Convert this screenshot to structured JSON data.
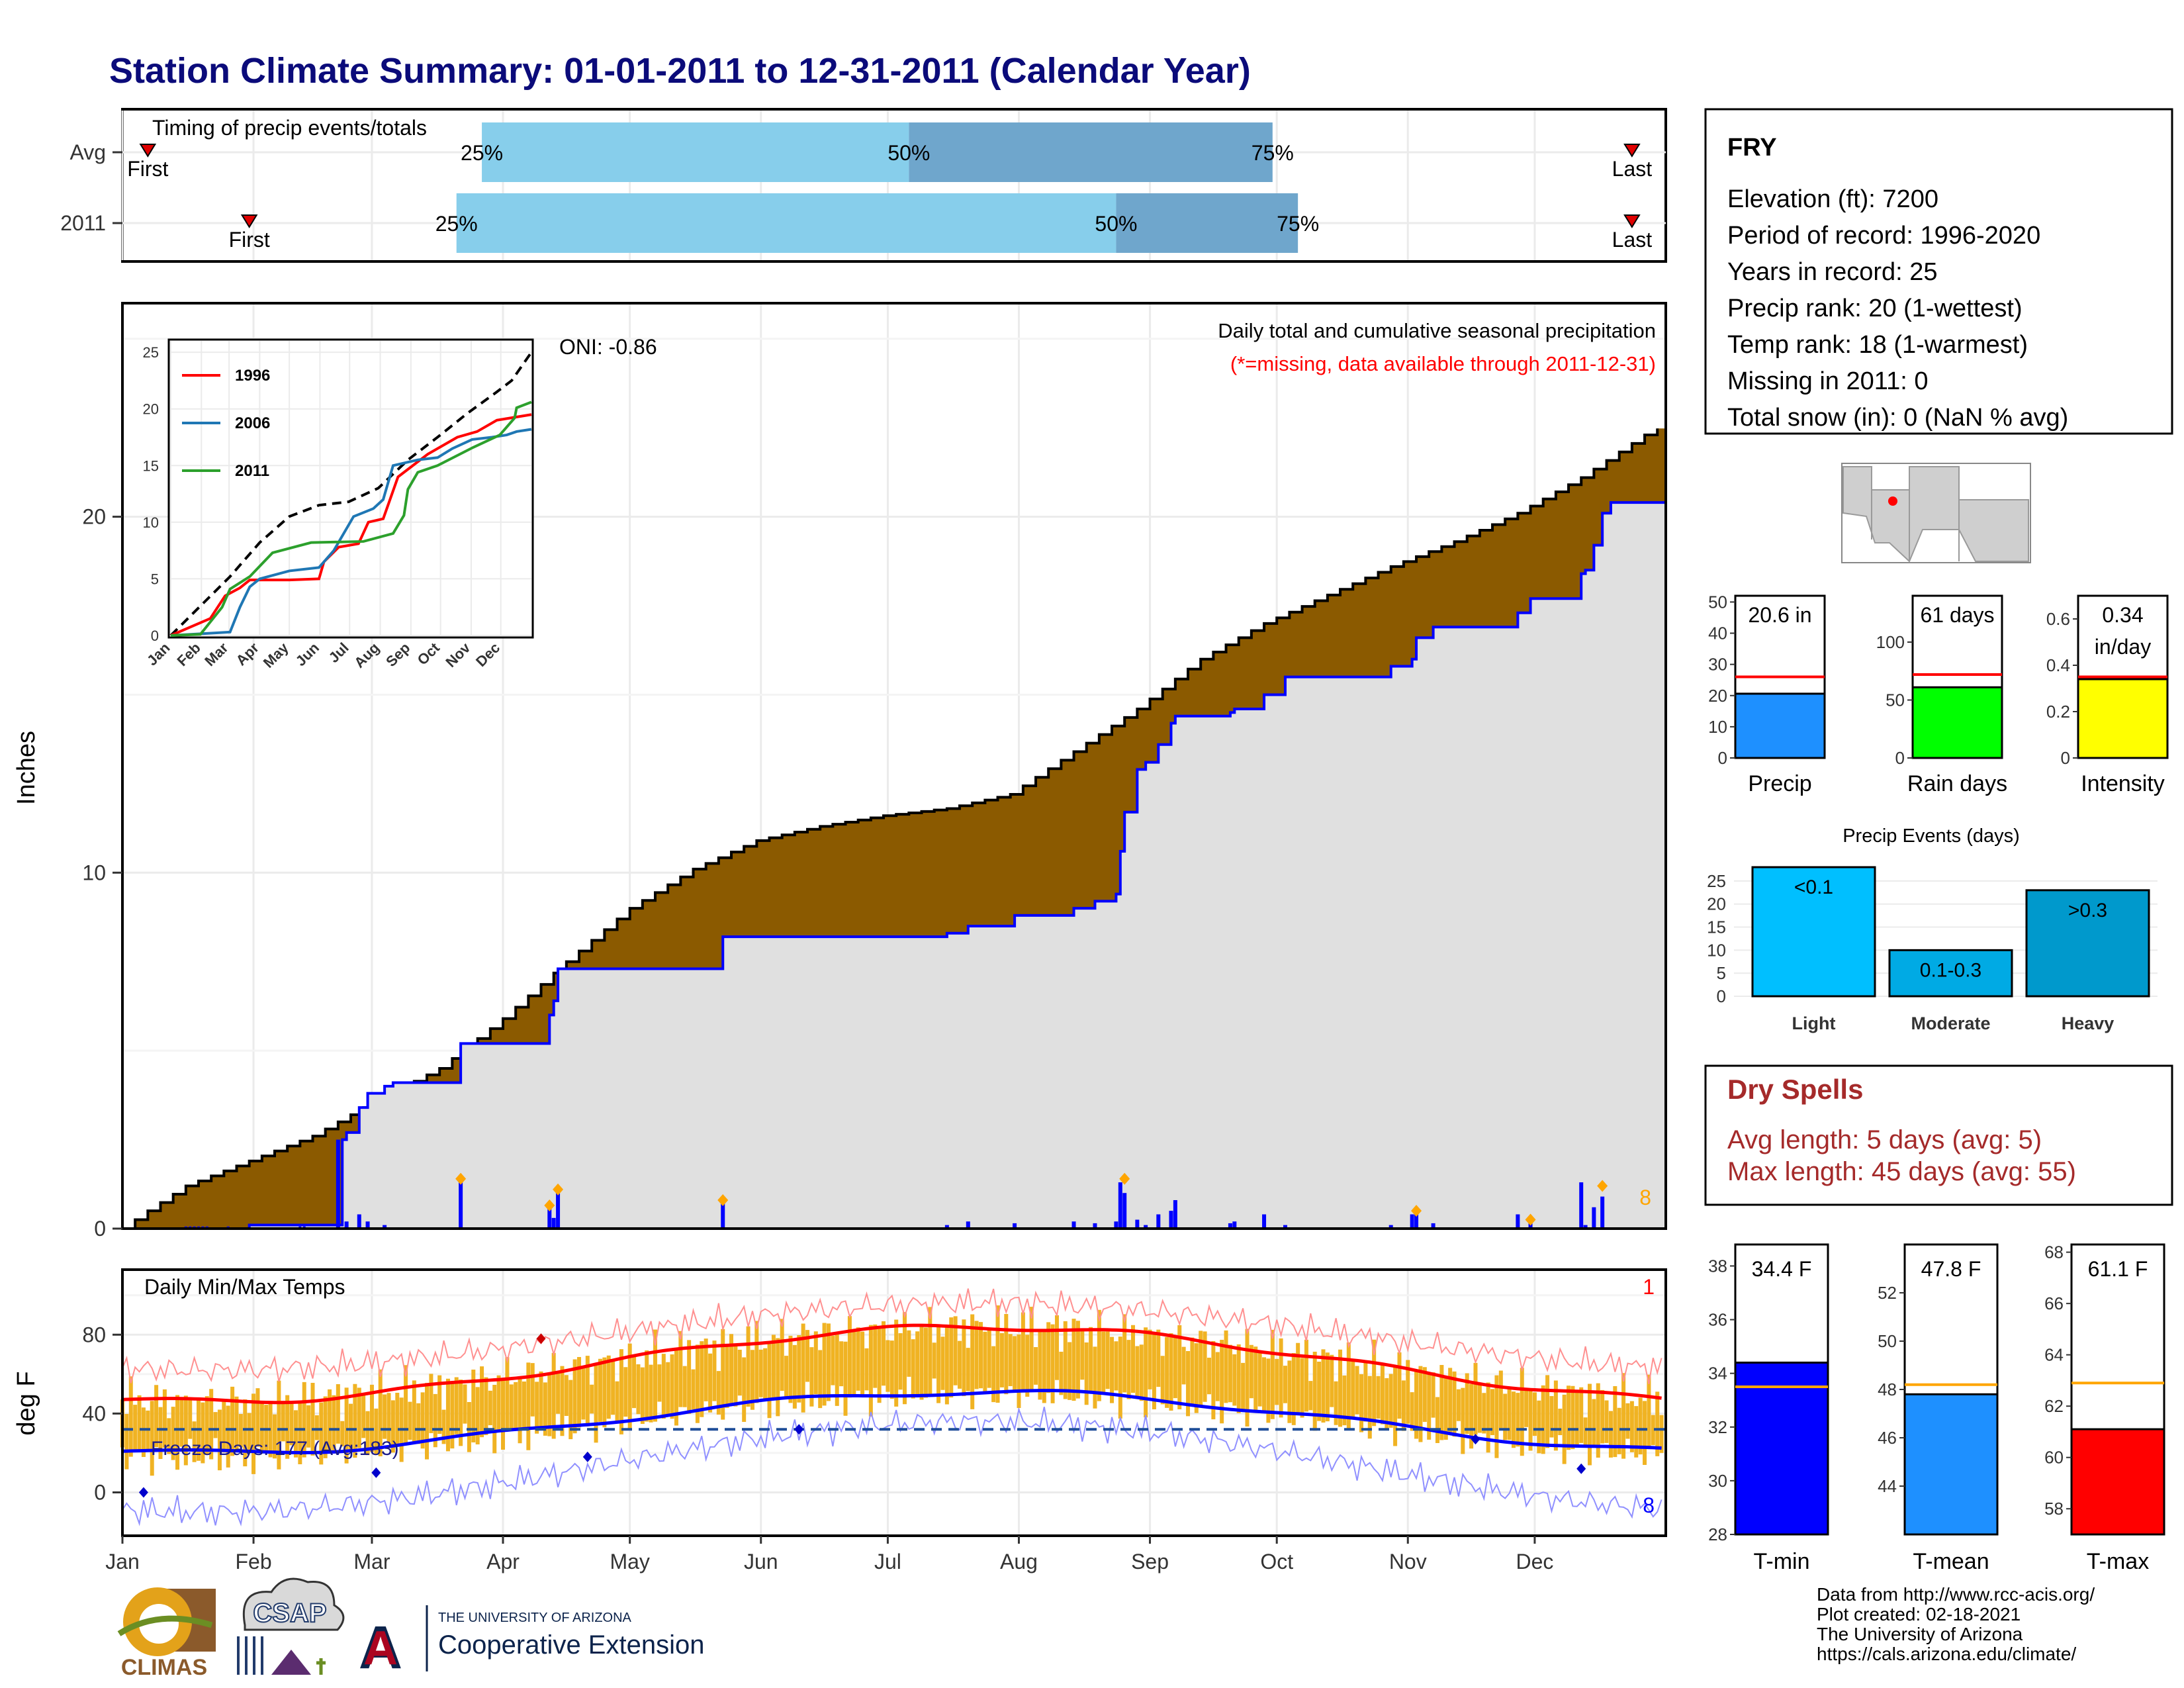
{
  "title": "Station Climate Summary: 01-01-2011 to 12-31-2011 (Calendar Year)",
  "colors": {
    "title": "#0b0b7a",
    "precip_fill": "#8b5a00",
    "precip_line": "#0000ff",
    "cum_gray": "#e0e0e0",
    "timing_light": "#87ceeb",
    "timing_dark": "#6fa6cc",
    "tmin": "#0000ff",
    "tmean": "#1e90ff",
    "tmax": "#ff0000",
    "range": "#f0b323",
    "dry_spells": "#a52a2a"
  },
  "months": [
    "Jan",
    "Feb",
    "Mar",
    "Apr",
    "May",
    "Jun",
    "Jul",
    "Aug",
    "Sep",
    "Oct",
    "Nov",
    "Dec"
  ],
  "timing": {
    "title": "Timing of precip events/totals",
    "rows": [
      {
        "label": "Avg",
        "first_day": 6,
        "last_day": 357,
        "p25": 85,
        "p50": 186,
        "p75": 272,
        "first_label": "First",
        "last_label": "Last",
        "p25_label": "25%",
        "p50_label": "50%",
        "p75_label": "75%"
      },
      {
        "label": "2011",
        "first_day": 30,
        "last_day": 357,
        "p25": 79,
        "p50": 235,
        "p75": 278,
        "first_label": "First",
        "last_label": "Last",
        "p25_label": "25%",
        "p50_label": "50%",
        "p75_label": "75%"
      }
    ]
  },
  "precip_panel": {
    "ylabel": "Inches",
    "yticks": [
      0,
      10,
      20
    ],
    "ymax": 26,
    "oni": "ONI: -0.86",
    "header1": "Daily total and cumulative seasonal precipitation",
    "header2": "(*=missing, data available through 2011-12-31)",
    "count_label": "8",
    "avg_cumulative": [
      [
        0,
        0
      ],
      [
        6,
        0.5
      ],
      [
        15,
        1.2
      ],
      [
        30,
        1.9
      ],
      [
        45,
        2.6
      ],
      [
        60,
        3.6
      ],
      [
        75,
        4.5
      ],
      [
        90,
        5.9
      ],
      [
        105,
        7.5
      ],
      [
        120,
        9.0
      ],
      [
        135,
        10.1
      ],
      [
        150,
        10.9
      ],
      [
        165,
        11.3
      ],
      [
        180,
        11.6
      ],
      [
        195,
        11.8
      ],
      [
        210,
        12.2
      ],
      [
        225,
        13.4
      ],
      [
        240,
        14.6
      ],
      [
        255,
        16.0
      ],
      [
        270,
        17.0
      ],
      [
        285,
        17.8
      ],
      [
        300,
        18.6
      ],
      [
        315,
        19.3
      ],
      [
        330,
        20.1
      ],
      [
        345,
        21.1
      ],
      [
        360,
        22.3
      ],
      [
        375,
        23.2
      ],
      [
        390,
        24.2
      ],
      [
        405,
        25.4
      ]
    ],
    "obs_cumulative": [
      [
        0,
        0
      ],
      [
        30,
        0.1
      ],
      [
        51,
        0.1
      ],
      [
        52,
        2.5
      ],
      [
        53,
        2.7
      ],
      [
        56,
        3.4
      ],
      [
        58,
        3.8
      ],
      [
        62,
        4.0
      ],
      [
        64,
        4.1
      ],
      [
        79,
        4.1
      ],
      [
        80,
        5.2
      ],
      [
        100,
        5.2
      ],
      [
        101,
        6.0
      ],
      [
        102,
        6.4
      ],
      [
        103,
        7.3
      ],
      [
        141,
        7.3
      ],
      [
        142,
        8.2
      ],
      [
        170,
        8.2
      ],
      [
        180,
        8.2
      ],
      [
        195,
        8.3
      ],
      [
        200,
        8.5
      ],
      [
        210,
        8.5
      ],
      [
        211,
        8.8
      ],
      [
        225,
        9.0
      ],
      [
        230,
        9.2
      ],
      [
        235,
        9.4
      ],
      [
        236,
        10.6
      ],
      [
        237,
        11.7
      ],
      [
        240,
        12.9
      ],
      [
        242,
        13.1
      ],
      [
        245,
        13.6
      ],
      [
        248,
        14.2
      ],
      [
        249,
        14.4
      ],
      [
        262,
        14.5
      ],
      [
        263,
        14.6
      ],
      [
        270,
        15.0
      ],
      [
        275,
        15.5
      ],
      [
        300,
        15.8
      ],
      [
        305,
        16.0
      ],
      [
        306,
        16.6
      ],
      [
        310,
        16.9
      ],
      [
        330,
        17.3
      ],
      [
        333,
        17.7
      ],
      [
        345,
        18.4
      ],
      [
        346,
        18.5
      ],
      [
        348,
        19.2
      ],
      [
        350,
        20.1
      ],
      [
        352,
        20.4
      ],
      [
        365,
        20.6
      ]
    ],
    "daily": [
      [
        51,
        2.5
      ],
      [
        53,
        0.2
      ],
      [
        56,
        0.4
      ],
      [
        58,
        0.2
      ],
      [
        62,
        0.1
      ],
      [
        80,
        1.3
      ],
      [
        101,
        0.6
      ],
      [
        102,
        0.3
      ],
      [
        103,
        1.0
      ],
      [
        142,
        0.7
      ],
      [
        195,
        0.1
      ],
      [
        200,
        0.2
      ],
      [
        211,
        0.15
      ],
      [
        225,
        0.2
      ],
      [
        230,
        0.15
      ],
      [
        235,
        0.2
      ],
      [
        236,
        1.3
      ],
      [
        237,
        1.0
      ],
      [
        240,
        0.25
      ],
      [
        242,
        0.1
      ],
      [
        245,
        0.4
      ],
      [
        248,
        0.5
      ],
      [
        249,
        0.8
      ],
      [
        262,
        0.15
      ],
      [
        263,
        0.2
      ],
      [
        270,
        0.4
      ],
      [
        275,
        0.1
      ],
      [
        300,
        0.1
      ],
      [
        305,
        0.4
      ],
      [
        306,
        0.6
      ],
      [
        310,
        0.15
      ],
      [
        330,
        0.4
      ],
      [
        333,
        0.3
      ],
      [
        345,
        1.3
      ],
      [
        346,
        0.1
      ],
      [
        348,
        0.6
      ],
      [
        350,
        0.9
      ]
    ],
    "markers": [
      [
        80,
        1.4
      ],
      [
        101,
        0.65
      ],
      [
        103,
        1.1
      ],
      [
        142,
        0.8
      ],
      [
        237,
        1.4
      ],
      [
        306,
        0.5
      ],
      [
        333,
        0.25
      ],
      [
        350,
        1.2
      ]
    ]
  },
  "inset": {
    "yticks": [
      0,
      5,
      10,
      15,
      20,
      25
    ],
    "ymax": 26,
    "series": [
      {
        "name": "1996",
        "color": "#ff0000",
        "points": [
          [
            0,
            0
          ],
          [
            40,
            1.5
          ],
          [
            55,
            3.5
          ],
          [
            70,
            4.2
          ],
          [
            80,
            4.9
          ],
          [
            120,
            4.9
          ],
          [
            150,
            5.0
          ],
          [
            155,
            6.5
          ],
          [
            170,
            7.8
          ],
          [
            190,
            8.1
          ],
          [
            200,
            10.0
          ],
          [
            215,
            10.3
          ],
          [
            230,
            14.0
          ],
          [
            245,
            15.0
          ],
          [
            260,
            16.0
          ],
          [
            290,
            17.5
          ],
          [
            310,
            18.0
          ],
          [
            330,
            19.0
          ],
          [
            365,
            19.5
          ]
        ]
      },
      {
        "name": "2006",
        "color": "#1f77b4",
        "points": [
          [
            0,
            0
          ],
          [
            60,
            0.3
          ],
          [
            70,
            2.5
          ],
          [
            80,
            4.3
          ],
          [
            90,
            5.0
          ],
          [
            120,
            5.7
          ],
          [
            150,
            6.0
          ],
          [
            165,
            7.5
          ],
          [
            185,
            10.5
          ],
          [
            205,
            11.2
          ],
          [
            215,
            12.0
          ],
          [
            225,
            15.0
          ],
          [
            250,
            15.5
          ],
          [
            270,
            15.7
          ],
          [
            285,
            16.5
          ],
          [
            305,
            17.3
          ],
          [
            325,
            17.5
          ],
          [
            340,
            17.7
          ],
          [
            350,
            18.0
          ],
          [
            365,
            18.2
          ]
        ]
      },
      {
        "name": "2011",
        "color": "#2ca02c",
        "points": [
          [
            0,
            0
          ],
          [
            30,
            0.1
          ],
          [
            52,
            2.5
          ],
          [
            60,
            4.1
          ],
          [
            80,
            5.2
          ],
          [
            103,
            7.3
          ],
          [
            142,
            8.2
          ],
          [
            195,
            8.3
          ],
          [
            225,
            9.0
          ],
          [
            236,
            10.6
          ],
          [
            240,
            12.9
          ],
          [
            250,
            14.4
          ],
          [
            270,
            15.0
          ],
          [
            306,
            16.6
          ],
          [
            333,
            17.7
          ],
          [
            348,
            19.2
          ],
          [
            350,
            20.1
          ],
          [
            365,
            20.6
          ]
        ]
      }
    ],
    "avg_line": [
      [
        0,
        0
      ],
      [
        30,
        2.6
      ],
      [
        60,
        5.2
      ],
      [
        90,
        8.2
      ],
      [
        120,
        10.5
      ],
      [
        150,
        11.5
      ],
      [
        180,
        11.8
      ],
      [
        210,
        13.0
      ],
      [
        240,
        15.5
      ],
      [
        270,
        17.5
      ],
      [
        300,
        19.6
      ],
      [
        330,
        21.5
      ],
      [
        345,
        22.5
      ],
      [
        365,
        25.0
      ]
    ]
  },
  "temp_panel": {
    "title": "Daily Min/Max Temps",
    "ylabel": "deg F",
    "yticks": [
      0,
      40,
      80
    ],
    "ymin": -22,
    "ymax": 113,
    "freeze_label": "Freeze Days: 177 (Avg:183)",
    "freeze_level": 32,
    "count_top": "1",
    "count_bottom": "8"
  },
  "station": {
    "name": "FRY",
    "lines": [
      "Elevation (ft): 7200",
      "Period of record: 1996-2020",
      "Years in record: 25",
      "Precip rank: 20 (1-wettest)",
      "Temp rank: 18 (1-warmest)",
      "Missing in 2011: 0",
      "Total snow (in): 0 (NaN % avg)"
    ]
  },
  "minibars": [
    {
      "label": "Precip",
      "value": 20.6,
      "avg": 26,
      "max": 52,
      "ticks": [
        0,
        10,
        20,
        30,
        40,
        50
      ],
      "text1": "20.6 in",
      "text2": "",
      "color": "#1e90ff"
    },
    {
      "label": "Rain days",
      "value": 61,
      "avg": 72,
      "max": 140,
      "ticks": [
        0,
        50,
        100
      ],
      "text1": "61 days",
      "text2": "",
      "color": "#00ff00"
    },
    {
      "label": "Intensity",
      "value": 0.34,
      "avg": 0.35,
      "max": 0.7,
      "ticks": [
        0.0,
        0.2,
        0.4,
        0.6
      ],
      "text1": "0.34",
      "text2": "in/day",
      "color": "#ffff00"
    }
  ],
  "events": {
    "title": "Precip Events (days)",
    "yticks": [
      0,
      5,
      10,
      15,
      20,
      25
    ],
    "ymax": 28,
    "bars": [
      {
        "label": "Light",
        "value": 28,
        "text": "<0.1",
        "color": "#00bfff"
      },
      {
        "label": "Moderate",
        "value": 10,
        "text": "0.1-0.3",
        "color": "#00aae4"
      },
      {
        "label": "Heavy",
        "value": 23,
        "text": ">0.3",
        "color": "#0099cc"
      }
    ]
  },
  "dry_spells": {
    "title": "Dry Spells",
    "line1": "Avg length: 5 days (avg: 5)",
    "line2": "Max length: 45 days (avg: 55)"
  },
  "tbars": [
    {
      "label": "T-min",
      "value": 34.4,
      "avg": 33.5,
      "min": 28,
      "max": 38.8,
      "ticks": [
        28,
        30,
        32,
        34,
        36,
        38
      ],
      "text": "34.4 F",
      "color": "#0000ff"
    },
    {
      "label": "T-mean",
      "value": 47.8,
      "avg": 48.2,
      "min": 42,
      "max": 54,
      "ticks": [
        44,
        46,
        48,
        50,
        52
      ],
      "text": "47.8 F",
      "color": "#1e90ff"
    },
    {
      "label": "T-max",
      "value": 61.1,
      "avg": 62.9,
      "min": 57,
      "max": 68.3,
      "ticks": [
        58,
        60,
        62,
        64,
        66,
        68
      ],
      "text": "61.1 F",
      "color": "#ff0000"
    }
  ],
  "credits": [
    "Data from http://www.rcc-acis.org/",
    "Plot created: 02-18-2021",
    "The University of Arizona",
    "https://cals.arizona.edu/climate/"
  ],
  "logos": {
    "climas": "CLIMAS",
    "csap": "CSAP",
    "ua_small": "THE UNIVERSITY OF ARIZONA",
    "ua_big": "Cooperative Extension"
  },
  "chart_data": [
    {
      "type": "bar",
      "title": "Timing of precip events/totals",
      "categories": [
        "Avg",
        "2011"
      ],
      "series": [
        {
          "name": "25%",
          "values": [
            85,
            79
          ]
        },
        {
          "name": "50%",
          "values": [
            186,
            235
          ]
        },
        {
          "name": "75%",
          "values": [
            272,
            278
          ]
        }
      ]
    },
    {
      "type": "area",
      "title": "Daily total and cumulative seasonal precipitation",
      "ylabel": "Inches",
      "ylim": [
        0,
        26
      ],
      "xlim": [
        "Jan",
        "Dec"
      ]
    },
    {
      "type": "line",
      "title": "Daily Min/Max Temps",
      "ylabel": "deg F",
      "ylim": [
        -22,
        113
      ]
    },
    {
      "type": "bar",
      "categories": [
        "Precip",
        "Rain days",
        "Intensity"
      ],
      "values": [
        20.6,
        61,
        0.34
      ]
    },
    {
      "type": "bar",
      "title": "Precip Events (days)",
      "categories": [
        "Light",
        "Moderate",
        "Heavy"
      ],
      "values": [
        28,
        10,
        23
      ]
    },
    {
      "type": "bar",
      "categories": [
        "T-min",
        "T-mean",
        "T-max"
      ],
      "values": [
        34.4,
        47.8,
        61.1
      ]
    }
  ]
}
